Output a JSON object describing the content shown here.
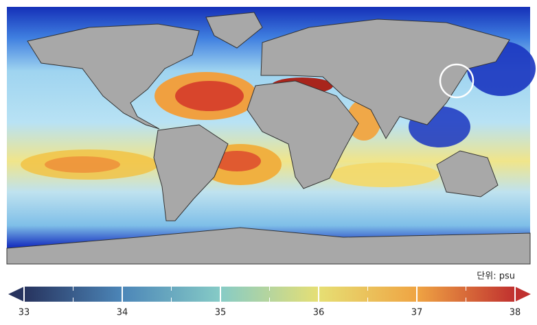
{
  "legend": {
    "unit_label": "단위: psu",
    "lim": [
      33,
      38
    ],
    "ticks": [
      33,
      34,
      35,
      36,
      37,
      38
    ],
    "minor_ticks": [
      33.5,
      34.5,
      35.5,
      36.5,
      37.5
    ],
    "colors": [
      "#27335e",
      "#4c86b8",
      "#86cbc6",
      "#e6df74",
      "#efa443",
      "#c0302f"
    ]
  }
}
